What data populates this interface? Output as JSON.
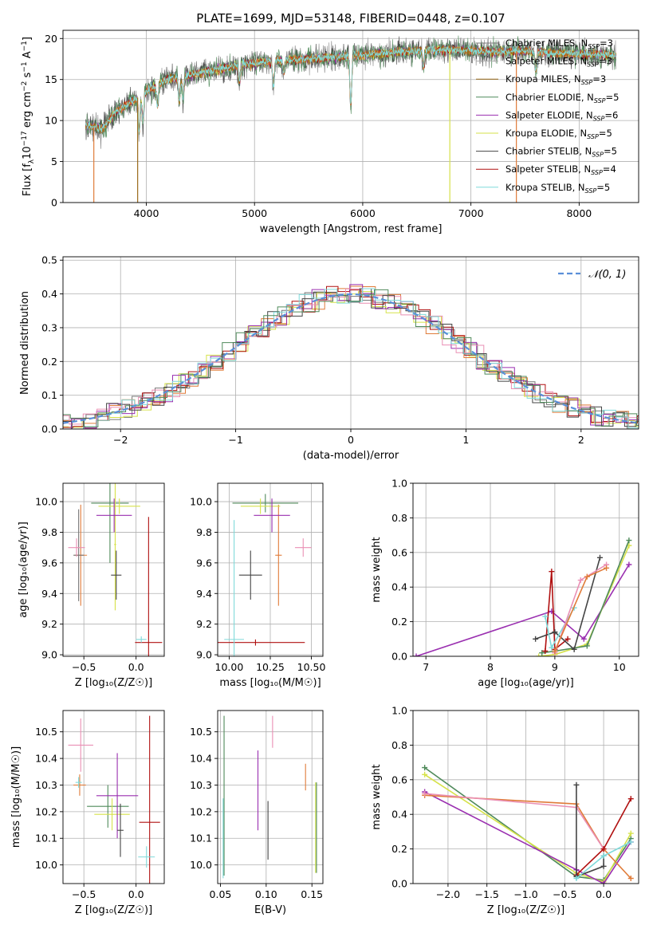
{
  "colors": {
    "Chabrier MILES": "#777777",
    "Salpeter MILES": "#aaaaaa",
    "Kroupa MILES": "#9a6a1a",
    "Chabrier ELODIE": "#4f8a5a",
    "Salpeter ELODIE": "#9a2fb0",
    "Kroupa ELODIE": "#d6e24a",
    "Chabrier STELIB": "#444444",
    "Salpeter STELIB": "#b01010",
    "Kroupa STELIB": "#7fdada",
    "orange": "#e07b39",
    "pink": "#ea8fb4",
    "gauss": "#5a8fd8"
  },
  "chart_data": [
    {
      "id": "spectrum",
      "type": "line",
      "title": "PLATE=1699, MJD=53148, FIBERID=0448, z=0.107",
      "xlabel": "wavelength [Angstrom, rest frame]",
      "ylabel_pre": "Flux [f",
      "ylabel_sub": "λ",
      "ylabel_post": "10",
      "ylabel_exp": "−17",
      "ylabel_tail": " erg cm",
      "ylabel_exp2": "−2",
      "ylabel_tail2": " s",
      "ylabel_exp3": "−1",
      "ylabel_tail3": " A",
      "ylabel_exp4": "−1",
      "ylabel_end": "]",
      "xlim": [
        3230,
        8550
      ],
      "ylim": [
        0,
        21
      ],
      "xticks": [
        4000,
        5000,
        6000,
        7000,
        8000
      ],
      "yticks": [
        0,
        5,
        10,
        15,
        20
      ],
      "continuum_x": [
        3440,
        3600,
        3700,
        3800,
        3900,
        4000,
        4200,
        4500,
        4800,
        5000,
        5300,
        5600,
        6000,
        6300,
        6600,
        6900,
        7200,
        7500,
        7800,
        8100,
        8350
      ],
      "continuum_y": [
        9.4,
        9.0,
        10.8,
        11.8,
        12.6,
        13.6,
        15.0,
        15.8,
        16.6,
        17.0,
        17.4,
        17.6,
        18.0,
        18.3,
        18.6,
        18.6,
        18.4,
        18.5,
        18.2,
        18.1,
        17.9
      ],
      "legend": [
        {
          "imf": "Chabrier MILES",
          "n": "3"
        },
        {
          "imf": "Salpeter MILES",
          "n": "3"
        },
        {
          "imf": "Kroupa MILES",
          "n": "3"
        },
        {
          "imf": "Chabrier ELODIE",
          "n": "5"
        },
        {
          "imf": "Salpeter ELODIE",
          "n": "6"
        },
        {
          "imf": "Kroupa ELODIE",
          "n": "5"
        },
        {
          "imf": "Chabrier STELIB",
          "n": "5"
        },
        {
          "imf": "Salpeter STELIB",
          "n": "4"
        },
        {
          "imf": "Kroupa STELIB",
          "n": "5"
        }
      ],
      "legend_pre": ", N",
      "legend_sub": "SSP",
      "legend_eq": "="
    },
    {
      "id": "residuals",
      "type": "line",
      "xlabel": "(data-model)/error",
      "ylabel": "Normed distribution",
      "xlim": [
        -2.5,
        2.5
      ],
      "ylim": [
        0,
        0.51
      ],
      "xticks": [
        -2,
        -1,
        0,
        1,
        2
      ],
      "yticks": [
        0.0,
        0.1,
        0.2,
        0.3,
        0.4,
        0.5
      ],
      "xtick_labels": [
        "−2",
        "−1",
        "0",
        "1",
        "2"
      ],
      "ytick_labels": [
        "0.0",
        "0.1",
        "0.2",
        "0.3",
        "0.4",
        "0.5"
      ],
      "legend": "𝒩(0, 1)",
      "gaussian": {
        "mean": 0,
        "sigma": 1
      }
    },
    {
      "id": "age_vs_Z",
      "type": "scatter",
      "xlabel": "Z [log₁₀(Z/Z☉)]",
      "ylabel": "age  [log₁₀(age/yr)]",
      "xlim": [
        -0.7,
        0.27
      ],
      "ylim": [
        8.99,
        10.12
      ],
      "xticks": [
        -0.5,
        0.0
      ],
      "xtick_labels": [
        "−0.5",
        "0.0"
      ],
      "yticks": [
        9.0,
        9.2,
        9.4,
        9.6,
        9.8,
        10.0
      ],
      "ytick_labels": [
        "9.0",
        "9.2",
        "9.4",
        "9.6",
        "9.8",
        "10.0"
      ],
      "points": [
        {
          "c": "orange",
          "x": -0.53,
          "xe": 0.06,
          "y": 9.65,
          "ye": 0.33
        },
        {
          "c": "Chabrier MILES",
          "x": -0.55,
          "xe": 0.05,
          "y": 9.65,
          "ye": 0.3
        },
        {
          "c": "pink",
          "x": -0.57,
          "xe": 0.08,
          "y": 9.7,
          "ye": 0.06
        },
        {
          "c": "Chabrier ELODIE",
          "x": -0.25,
          "xe": 0.18,
          "y": 9.99,
          "ye": 0.39
        },
        {
          "c": "Kroupa ELODIE",
          "x": -0.16,
          "xe": 0.2,
          "y": 9.97,
          "ye": 0.05
        },
        {
          "c": "Kroupa ELODIE",
          "x": -0.2,
          "xe": 0.01,
          "y": 9.72,
          "ye": 0.43
        },
        {
          "c": "Salpeter ELODIE",
          "x": -0.21,
          "xe": 0.17,
          "y": 9.91,
          "ye": 0.11
        },
        {
          "c": "Chabrier STELIB",
          "x": -0.19,
          "xe": 0.05,
          "y": 9.52,
          "ye": 0.16
        },
        {
          "c": "Salpeter STELIB",
          "x": 0.12,
          "xe": 0.13,
          "y": 9.08,
          "ye": 0.82
        },
        {
          "c": "Kroupa STELIB",
          "x": 0.05,
          "xe": 0.05,
          "y": 9.1,
          "ye": 0.02
        }
      ]
    },
    {
      "id": "age_vs_mass",
      "type": "scatter",
      "xlabel": "mass [log₁₀(M/M☉)]",
      "xlim": [
        9.93,
        10.57
      ],
      "ylim": [
        8.99,
        10.12
      ],
      "xticks": [
        10.0,
        10.25,
        10.5
      ],
      "xtick_labels": [
        "10.00",
        "10.25",
        "10.50"
      ],
      "yticks": [
        9.0,
        9.2,
        9.4,
        9.6,
        9.8,
        10.0
      ],
      "ytick_labels": [
        "9.0",
        "9.2",
        "9.4",
        "9.6",
        "9.8",
        "10.0"
      ],
      "points": [
        {
          "c": "orange",
          "x": 10.3,
          "xe": 0.02,
          "y": 9.65,
          "ye": 0.33
        },
        {
          "c": "pink",
          "x": 10.45,
          "xe": 0.05,
          "y": 9.7,
          "ye": 0.06
        },
        {
          "c": "Chabrier ELODIE",
          "x": 10.22,
          "xe": 0.2,
          "y": 9.99,
          "ye": 0.06
        },
        {
          "c": "Kroupa ELODIE",
          "x": 10.19,
          "xe": 0.12,
          "y": 9.97,
          "ye": 0.05
        },
        {
          "c": "Salpeter ELODIE",
          "x": 10.26,
          "xe": 0.11,
          "y": 9.91,
          "ye": 0.11
        },
        {
          "c": "Chabrier STELIB",
          "x": 10.13,
          "xe": 0.07,
          "y": 9.52,
          "ye": 0.16
        },
        {
          "c": "Salpeter STELIB",
          "x": 10.16,
          "xe": 0.3,
          "y": 9.08,
          "ye": 0.02
        },
        {
          "c": "Kroupa STELIB",
          "x": 10.03,
          "xe": 0.06,
          "y": 9.1,
          "ye": 0.78
        }
      ]
    },
    {
      "id": "weight_vs_age",
      "type": "line",
      "xlabel": "age  [log₁₀(age/yr)]",
      "ylabel": "mass weight",
      "xlim": [
        6.8,
        10.3
      ],
      "ylim": [
        0.0,
        1.0
      ],
      "xticks": [
        7,
        8,
        9,
        10
      ],
      "xtick_labels": [
        "7",
        "8",
        "9",
        "10"
      ],
      "yticks": [
        0.0,
        0.2,
        0.4,
        0.6,
        0.8,
        1.0
      ],
      "ytick_labels": [
        "0.0",
        "0.2",
        "0.4",
        "0.6",
        "0.8",
        "1.0"
      ],
      "series": [
        {
          "c": "Salpeter ELODIE",
          "x": [
            6.85,
            8.95,
            9.45,
            10.15
          ],
          "y": [
            0.0,
            0.26,
            0.1,
            0.53
          ]
        },
        {
          "c": "Kroupa ELODIE",
          "x": [
            8.75,
            9.0,
            9.5,
            10.15
          ],
          "y": [
            0.0,
            0.01,
            0.07,
            0.64
          ]
        },
        {
          "c": "Chabrier ELODIE",
          "x": [
            8.8,
            9.0,
            9.5,
            10.15
          ],
          "y": [
            0.02,
            0.03,
            0.06,
            0.67
          ]
        },
        {
          "c": "Salpeter STELIB",
          "x": [
            8.85,
            8.95,
            9.0,
            9.2
          ],
          "y": [
            0.03,
            0.49,
            0.04,
            0.1
          ]
        },
        {
          "c": "Chabrier STELIB",
          "x": [
            8.7,
            9.0,
            9.3,
            9.7
          ],
          "y": [
            0.1,
            0.14,
            0.04,
            0.57
          ]
        },
        {
          "c": "Kroupa STELIB",
          "x": [
            8.85,
            8.95,
            9.3
          ],
          "y": [
            0.23,
            0.05,
            0.28
          ]
        },
        {
          "c": "pink",
          "x": [
            9.0,
            9.4,
            9.8
          ],
          "y": [
            0.02,
            0.44,
            0.53
          ]
        },
        {
          "c": "orange",
          "x": [
            9.0,
            9.5,
            9.8
          ],
          "y": [
            0.03,
            0.46,
            0.51
          ]
        }
      ]
    },
    {
      "id": "mass_vs_Z",
      "type": "scatter",
      "xlabel": "Z [log₁₀(Z/Z☉)]",
      "ylabel": "mass [log₁₀(M/M☉)]",
      "xlim": [
        -0.7,
        0.27
      ],
      "ylim": [
        9.93,
        10.58
      ],
      "xticks": [
        -0.5,
        0.0
      ],
      "xtick_labels": [
        "−0.5",
        "0.0"
      ],
      "yticks": [
        10.0,
        10.1,
        10.2,
        10.3,
        10.4,
        10.5
      ],
      "ytick_labels": [
        "10.0",
        "10.1",
        "10.2",
        "10.3",
        "10.4",
        "10.5"
      ],
      "points": [
        {
          "c": "pink",
          "x": -0.53,
          "xe": 0.12,
          "y": 10.45,
          "ye": 0.1
        },
        {
          "c": "orange",
          "x": -0.54,
          "xe": 0.06,
          "y": 10.3,
          "ye": 0.04
        },
        {
          "c": "Kroupa STELIB",
          "x": -0.55,
          "xe": 0.03,
          "y": 10.31,
          "ye": 0.02
        },
        {
          "c": "Chabrier ELODIE",
          "x": -0.27,
          "xe": 0.2,
          "y": 10.22,
          "ye": 0.08
        },
        {
          "c": "Kroupa ELODIE",
          "x": -0.23,
          "xe": 0.17,
          "y": 10.19,
          "ye": 0.06
        },
        {
          "c": "Salpeter ELODIE",
          "x": -0.18,
          "xe": 0.2,
          "y": 10.26,
          "ye": 0.16
        },
        {
          "c": "Chabrier STELIB",
          "x": -0.15,
          "xe": 0.03,
          "y": 10.13,
          "ye": 0.1
        },
        {
          "c": "Salpeter STELIB",
          "x": 0.13,
          "xe": 0.1,
          "y": 10.16,
          "ye": 0.4
        },
        {
          "c": "Kroupa STELIB",
          "x": 0.1,
          "xe": 0.08,
          "y": 10.03,
          "ye": 0.04
        }
      ]
    },
    {
      "id": "mass_vs_ebv",
      "type": "scatter",
      "xlabel": "E(B-V)",
      "xlim": [
        0.047,
        0.162
      ],
      "ylim": [
        9.93,
        10.58
      ],
      "xticks": [
        0.05,
        0.1,
        0.15
      ],
      "xtick_labels": [
        "0.05",
        "0.10",
        "0.15"
      ],
      "yticks": [
        10.0,
        10.1,
        10.2,
        10.3,
        10.4,
        10.5
      ],
      "ytick_labels": [
        "10.0",
        "10.1",
        "10.2",
        "10.3",
        "10.4",
        "10.5"
      ],
      "points": [
        {
          "c": "Chabrier ELODIE",
          "x": 0.054,
          "xe": 0,
          "y": 10.26,
          "ye": 0.3
        },
        {
          "c": "Kroupa STELIB",
          "x": 0.053,
          "xe": 0,
          "y": 10.1,
          "ye": 0.15
        },
        {
          "c": "Salpeter ELODIE",
          "x": 0.091,
          "xe": 0,
          "y": 10.28,
          "ye": 0.15
        },
        {
          "c": "Chabrier STELIB",
          "x": 0.102,
          "xe": 0,
          "y": 10.13,
          "ye": 0.11
        },
        {
          "c": "pink",
          "x": 0.107,
          "xe": 0,
          "y": 10.5,
          "ye": 0.06
        },
        {
          "c": "orange",
          "x": 0.143,
          "xe": 0,
          "y": 10.33,
          "ye": 0.05
        },
        {
          "c": "Kroupa ELODIE",
          "x": 0.154,
          "xe": 0,
          "y": 10.14,
          "ye": 0.17
        },
        {
          "c": "Chabrier ELODIE",
          "x": 0.155,
          "xe": 0,
          "y": 10.14,
          "ye": 0.17
        }
      ]
    },
    {
      "id": "weight_vs_Z",
      "type": "line",
      "xlabel": "Z [log₁₀(Z/Z☉)]",
      "ylabel": "mass weight",
      "xlim": [
        -2.45,
        0.45
      ],
      "ylim": [
        0.0,
        1.0
      ],
      "xticks": [
        -2.0,
        -1.5,
        -1.0,
        -0.5,
        0.0
      ],
      "xtick_labels": [
        "−2.0",
        "−1.5",
        "−1.0",
        "−0.5",
        "0.0"
      ],
      "yticks": [
        0.0,
        0.2,
        0.4,
        0.6,
        0.8,
        1.0
      ],
      "ytick_labels": [
        "0.0",
        "0.2",
        "0.4",
        "0.6",
        "0.8",
        "1.0"
      ],
      "series": [
        {
          "c": "Chabrier ELODIE",
          "x": [
            -2.3,
            -0.35,
            0.0,
            0.35
          ],
          "y": [
            0.67,
            0.04,
            0.02,
            0.26
          ]
        },
        {
          "c": "Kroupa ELODIE",
          "x": [
            -2.3,
            -0.35,
            0.0,
            0.35
          ],
          "y": [
            0.63,
            0.06,
            0.01,
            0.29
          ]
        },
        {
          "c": "Salpeter ELODIE",
          "x": [
            -2.3,
            -0.35,
            0.0,
            0.35
          ],
          "y": [
            0.53,
            0.08,
            0.0,
            0.24
          ]
        },
        {
          "c": "orange",
          "x": [
            -2.3,
            -0.35,
            0.0,
            0.35
          ],
          "y": [
            0.51,
            0.46,
            0.2,
            0.03
          ]
        },
        {
          "c": "pink",
          "x": [
            -2.3,
            -0.35,
            0.0
          ],
          "y": [
            0.52,
            0.44,
            0.2
          ]
        },
        {
          "c": "Salpeter STELIB",
          "x": [
            -0.35,
            0.0,
            0.35
          ],
          "y": [
            0.05,
            0.2,
            0.49
          ]
        },
        {
          "c": "Chabrier STELIB",
          "x": [
            -0.35,
            -0.35,
            0.0,
            0.0
          ],
          "y": [
            0.57,
            0.04,
            0.1,
            0.16
          ]
        },
        {
          "c": "Kroupa STELIB",
          "x": [
            -0.35,
            0.0,
            0.35
          ],
          "y": [
            0.03,
            0.16,
            0.24
          ]
        }
      ]
    }
  ]
}
